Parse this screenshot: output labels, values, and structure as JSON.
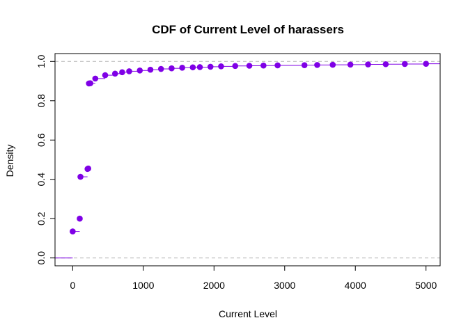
{
  "chart_data": {
    "type": "scatter",
    "title": "CDF of Current Level of harassers",
    "xlabel": "Current Level",
    "ylabel": "Density",
    "xlim": [
      -250,
      5200
    ],
    "ylim": [
      -0.04,
      1.04
    ],
    "x_ticks": [
      "0",
      "1000",
      "2000",
      "3000",
      "4000",
      "5000"
    ],
    "y_ticks": [
      "0.0",
      "0.2",
      "0.4",
      "0.6",
      "0.8",
      "1.0"
    ],
    "reference_lines_y": [
      0,
      1
    ],
    "grid": false,
    "legend": "none",
    "colors": {
      "series": "#7f00e6",
      "reference": "#bebebe",
      "axis": "#000000"
    },
    "x": [
      0,
      100,
      110,
      210,
      220,
      230,
      250,
      320,
      460,
      600,
      700,
      800,
      950,
      1100,
      1250,
      1400,
      1550,
      1700,
      1800,
      1950,
      2100,
      2300,
      2500,
      2700,
      2900,
      3280,
      3460,
      3680,
      3930,
      4180,
      4430,
      4700,
      5000
    ],
    "y": [
      0.135,
      0.2,
      0.413,
      0.453,
      0.455,
      0.888,
      0.889,
      0.913,
      0.93,
      0.938,
      0.945,
      0.95,
      0.954,
      0.958,
      0.962,
      0.965,
      0.968,
      0.97,
      0.971,
      0.973,
      0.975,
      0.977,
      0.978,
      0.979,
      0.98,
      0.981,
      0.982,
      0.983,
      0.984,
      0.985,
      0.986,
      0.987,
      0.988
    ]
  }
}
